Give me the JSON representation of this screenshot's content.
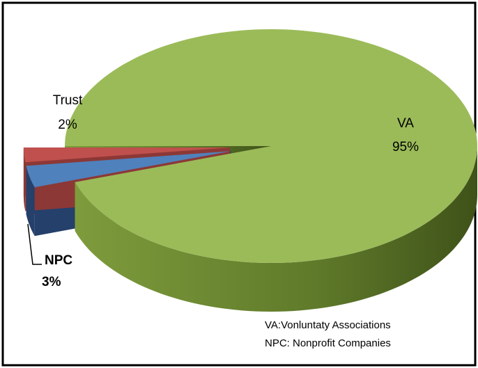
{
  "chart_data": {
    "type": "pie",
    "categories": [
      "VA",
      "NPC",
      "Trust"
    ],
    "values": [
      95,
      3,
      2
    ],
    "value_labels": [
      "95%",
      "3%",
      "2%"
    ],
    "colors": [
      "#9bbb59",
      "#4f81bd",
      "#c0504d"
    ],
    "annotations": [
      "VA:Vonluntaty Associations",
      "NPC: Nonprofit Companies"
    ]
  }
}
